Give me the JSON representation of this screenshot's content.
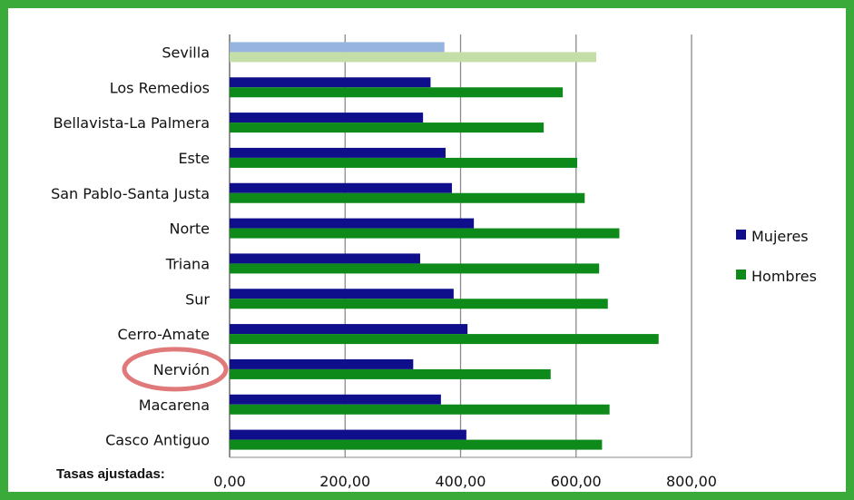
{
  "chart_data": {
    "type": "bar",
    "orientation": "horizontal",
    "categories": [
      "Sevilla",
      "Los Remedios",
      "Bellavista-La Palmera",
      "Este",
      "San Pablo-Santa Justa",
      "Norte",
      "Triana",
      "Sur",
      "Cerro-Amate",
      "Nervión",
      "Macarena",
      "Casco Antiguo"
    ],
    "series": [
      {
        "name": "Mujeres",
        "color": "#0f0f8c",
        "values": [
          372,
          348,
          335,
          374,
          385,
          423,
          330,
          388,
          412,
          318,
          366,
          410
        ]
      },
      {
        "name": "Hombres",
        "color": "#0d8a1a",
        "values": [
          635,
          577,
          544,
          602,
          615,
          675,
          640,
          655,
          743,
          556,
          658,
          645
        ]
      }
    ],
    "highlight_category": "Sevilla",
    "highlight_colors": {
      "Mujeres": "#97b3e0",
      "Hombres": "#c3dea6"
    },
    "circled_category": "Nervión",
    "circle_color": "#e07a7a",
    "xlim": [
      0,
      800
    ],
    "xticks": [
      "0,00",
      "200,00",
      "400,00",
      "600,00",
      "800,00"
    ],
    "grid": "vertical",
    "legend_position": "right",
    "xlabel": "",
    "ylabel": "",
    "title": ""
  },
  "footnote": "Tasas ajustadas:",
  "frame_color": "#3aab3a"
}
